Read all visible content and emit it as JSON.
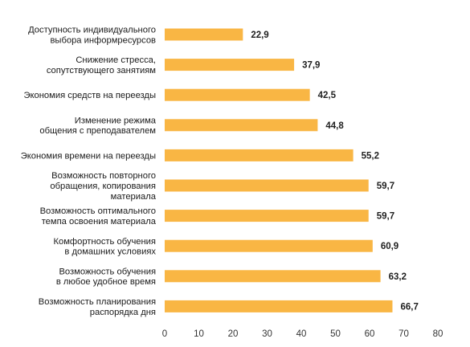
{
  "chart_data": {
    "type": "bar",
    "orientation": "horizontal",
    "title": "",
    "xlabel": "",
    "ylabel": "",
    "categories": [
      [
        "Доступность индивидуального",
        "выбора информресурсов"
      ],
      [
        "Снижение стресса,",
        "сопутствующего занятиям"
      ],
      [
        "Экономия средств на переезды"
      ],
      [
        "Изменение режима",
        "общения с преподавателем"
      ],
      [
        "Экономия времени на переезды"
      ],
      [
        "Возможность повторного",
        "обращения, копирования",
        "материала"
      ],
      [
        "Возможность  оптимального",
        "темпа освоения материала"
      ],
      [
        "Комфортность обучения",
        "в домашних условиях"
      ],
      [
        "Возможность обучения",
        "в любое удобное время"
      ],
      [
        "Возможность планирования",
        "распорядка дня"
      ]
    ],
    "values": [
      22.9,
      37.9,
      42.5,
      44.8,
      55.2,
      59.7,
      59.7,
      60.9,
      63.2,
      66.7
    ],
    "value_labels": [
      "22,9",
      "37,9",
      "42,5",
      "44,8",
      "55,2",
      "59,7",
      "59,7",
      "60,9",
      "63,2",
      "66,7"
    ],
    "xlim": [
      0,
      80
    ],
    "xticks": [
      0,
      10,
      20,
      30,
      40,
      50,
      60,
      70,
      80
    ],
    "grid": false,
    "legend": "none",
    "colors": {
      "bar": "#f9b644",
      "text": "#1a1a1a"
    }
  }
}
